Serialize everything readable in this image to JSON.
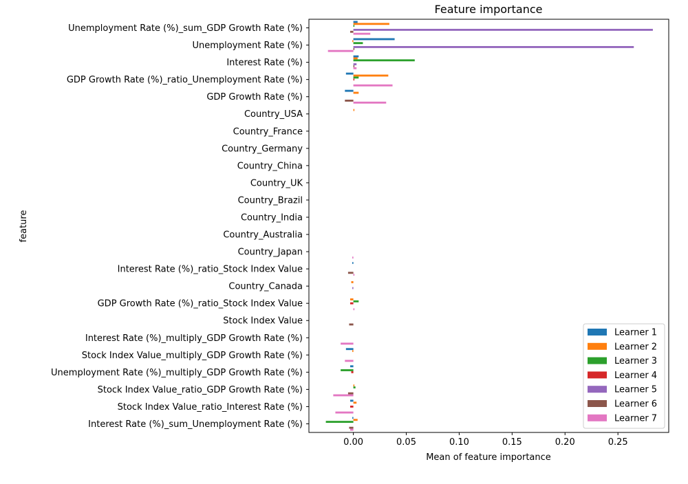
{
  "chart_data": {
    "type": "bar",
    "orientation": "horizontal",
    "title": "Feature importance",
    "xlabel": "Mean of feature importance",
    "ylabel": "feature",
    "xlim": [
      -0.042,
      0.298
    ],
    "xticks": [
      0.0,
      0.05,
      0.1,
      0.15,
      0.2,
      0.25
    ],
    "xtick_labels": [
      "0.00",
      "0.05",
      "0.10",
      "0.15",
      "0.20",
      "0.25"
    ],
    "grid": false,
    "legend_position": "lower-right",
    "categories": [
      "Unemployment Rate (%)_sum_GDP Growth Rate (%)",
      "Unemployment Rate (%)",
      "Interest Rate (%)",
      "GDP Growth Rate (%)_ratio_Unemployment Rate (%)",
      "GDP Growth Rate (%)",
      "Country_USA",
      "Country_France",
      "Country_Germany",
      "Country_China",
      "Country_UK",
      "Country_Brazil",
      "Country_India",
      "Country_Australia",
      "Country_Japan",
      "Interest Rate (%)_ratio_Stock Index Value",
      "Country_Canada",
      "GDP Growth Rate (%)_ratio_Stock Index Value",
      "Stock Index Value",
      "Interest Rate (%)_multiply_GDP Growth Rate (%)",
      "Stock Index Value_multiply_GDP Growth Rate (%)",
      "Unemployment Rate (%)_multiply_GDP Growth Rate (%)",
      "Stock Index Value_ratio_GDP Growth Rate (%)",
      "Stock Index Value_ratio_Interest Rate (%)",
      "Interest Rate (%)_sum_Unemployment Rate (%)"
    ],
    "series": [
      {
        "name": "Learner 1",
        "color": "#1f77b4",
        "values": [
          0.004,
          0.039,
          0.005,
          -0.007,
          -0.008,
          0,
          0,
          0,
          0,
          0,
          0,
          0,
          0,
          0,
          -0.001,
          0,
          0,
          0,
          0,
          -0.007,
          -0.003,
          0,
          -0.003,
          -0.001
        ]
      },
      {
        "name": "Learner 2",
        "color": "#ff7f0e",
        "values": [
          0.034,
          -0.001,
          0.004,
          0.033,
          0.005,
          0.001,
          0,
          0,
          0,
          0,
          0,
          0,
          0,
          0,
          0,
          -0.002,
          -0.003,
          0,
          0,
          -0.001,
          0,
          0.001,
          0.003,
          0.004
        ]
      },
      {
        "name": "Learner 3",
        "color": "#2ca02c",
        "values": [
          0.001,
          0.009,
          0.058,
          0.005,
          0,
          0,
          0,
          0,
          0,
          0,
          0,
          0,
          0,
          0,
          0,
          0,
          0.005,
          0,
          0,
          0,
          -0.012,
          0.002,
          0,
          -0.026
        ]
      },
      {
        "name": "Learner 4",
        "color": "#d62728",
        "values": [
          0,
          0,
          0,
          0.001,
          0,
          0,
          0,
          0,
          0,
          0,
          0,
          0,
          0,
          0,
          0,
          0,
          -0.003,
          0,
          0,
          0,
          -0.002,
          0,
          -0.003,
          0
        ]
      },
      {
        "name": "Learner 5",
        "color": "#9467bd",
        "values": [
          0.283,
          0.265,
          0.003,
          0,
          0,
          0,
          0,
          0,
          0,
          0,
          0,
          0,
          0,
          0,
          0,
          -0.001,
          0,
          0,
          0,
          0,
          0,
          0,
          0,
          0
        ]
      },
      {
        "name": "Learner 6",
        "color": "#8c564b",
        "values": [
          -0.003,
          0.001,
          0.001,
          0,
          -0.008,
          0,
          0,
          0,
          0,
          0,
          0,
          0,
          0,
          0,
          -0.005,
          0,
          0,
          -0.004,
          0,
          0,
          0,
          -0.005,
          0,
          -0.004
        ]
      },
      {
        "name": "Learner 7",
        "color": "#e377c2",
        "values": [
          0.016,
          -0.024,
          0.003,
          0.037,
          0.031,
          0,
          0,
          0,
          0,
          0,
          0,
          0,
          0,
          -0.001,
          0.001,
          0,
          0.001,
          0,
          -0.012,
          -0.008,
          0,
          -0.019,
          -0.017,
          -0.003
        ]
      }
    ]
  }
}
